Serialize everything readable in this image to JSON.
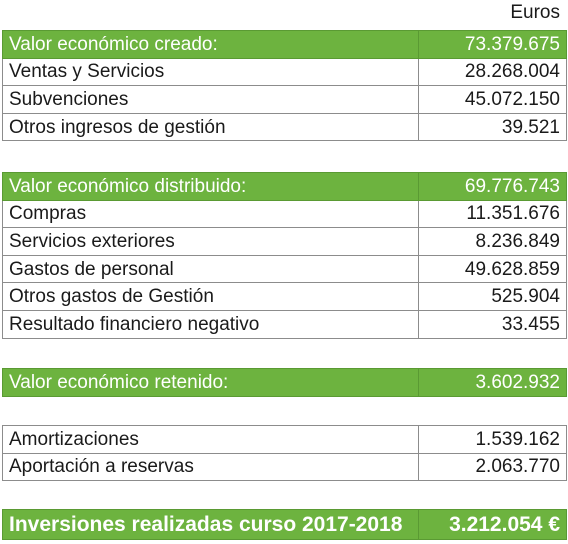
{
  "unit": "Euros",
  "sections": [
    {
      "header": {
        "label": "Valor económico creado:",
        "value": "73.379.675"
      },
      "rows": [
        [
          "Ventas y Servicios",
          "28.268.004"
        ],
        [
          "Subvenciones",
          "45.072.150"
        ],
        [
          "Otros ingresos de gestión",
          "39.521"
        ]
      ]
    },
    {
      "header": {
        "label": "Valor económico distribuido:",
        "value": "69.776.743"
      },
      "rows": [
        [
          "Compras",
          "11.351.676"
        ],
        [
          "Servicios exteriores",
          "8.236.849"
        ],
        [
          "Gastos de personal",
          "49.628.859"
        ],
        [
          "Otros gastos de Gestión",
          "525.904"
        ],
        [
          "Resultado financiero negativo",
          "33.455"
        ]
      ]
    },
    {
      "header": {
        "label": "Valor económico retenido:",
        "value": "3.602.932"
      }
    },
    {
      "rows": [
        [
          "Amortizaciones",
          "1.539.162"
        ],
        [
          "Aportación a reservas",
          "2.063.770"
        ]
      ]
    },
    {
      "header": {
        "label": "Inversiones realizadas curso 2017-2018",
        "value": "3.212.054 €"
      }
    }
  ]
}
